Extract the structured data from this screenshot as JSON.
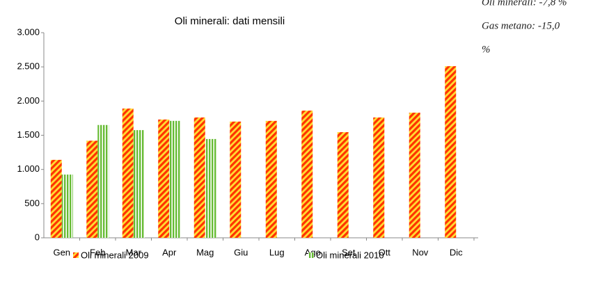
{
  "chart_data": {
    "type": "bar",
    "title": "Oli minerali: dati mensili",
    "categories": [
      "Gen",
      "Feb",
      "Mar",
      "Apr",
      "Mag",
      "Giu",
      "Lug",
      "Ago",
      "Set",
      "Ott",
      "Nov",
      "Dic"
    ],
    "series": [
      {
        "name": "Oli minerali 2009",
        "color": "#ff3300",
        "values": [
          1140,
          1420,
          1890,
          1730,
          1760,
          1700,
          1710,
          1860,
          1545,
          1760,
          1830,
          2510
        ]
      },
      {
        "name": "Oli minerali 2010",
        "color": "#66bb33",
        "values": [
          925,
          1650,
          1575,
          1710,
          1445,
          null,
          null,
          null,
          null,
          null,
          null,
          null
        ]
      }
    ],
    "ylim": [
      0,
      3000
    ],
    "yticks": [
      0,
      500,
      {
        "value": 1000,
        "label": "1.000"
      },
      {
        "value": 1500,
        "label": "1.500"
      },
      {
        "value": 2000,
        "label": "2.000"
      },
      {
        "value": 2500,
        "label": "2.500"
      },
      {
        "value": 3000,
        "label": "3.000"
      }
    ],
    "grid": false,
    "legend": "bottom",
    "annotations": [
      "Oli minerali: -7,8 %",
      "Gas metano: -15,0",
      "%"
    ]
  }
}
